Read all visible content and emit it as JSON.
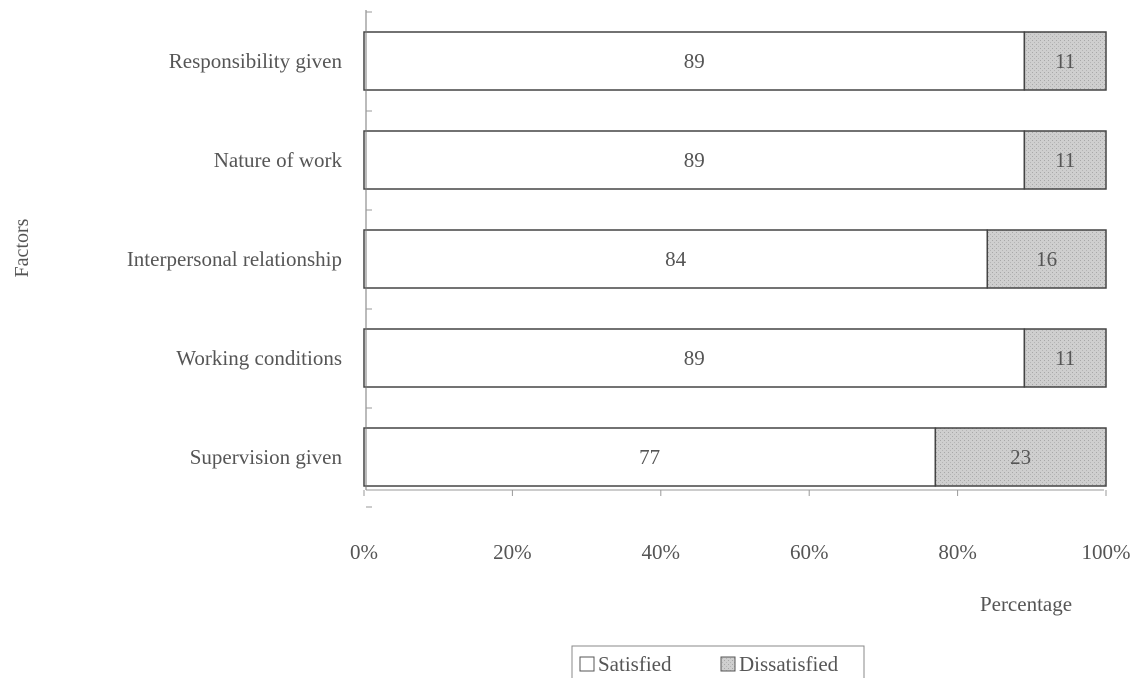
{
  "chart_data": {
    "type": "bar",
    "orientation": "horizontal",
    "stacked": "percent",
    "categories": [
      "Responsibility given",
      "Nature of work",
      "Interpersonal relationship",
      "Working conditions",
      "Supervision given"
    ],
    "series": [
      {
        "name": "Satisfied",
        "values": [
          89,
          89,
          84,
          89,
          77
        ],
        "color": "#ffffff"
      },
      {
        "name": "Dissatisfied",
        "values": [
          11,
          11,
          16,
          11,
          23
        ],
        "color": "#c4c4c4"
      }
    ],
    "xlabel": "Percentage",
    "ylabel": "Factors",
    "xlim": [
      0,
      100
    ],
    "x_ticks": [
      "0%",
      "20%",
      "40%",
      "60%",
      "80%",
      "100%"
    ],
    "grid": false,
    "legend_position": "bottom"
  }
}
